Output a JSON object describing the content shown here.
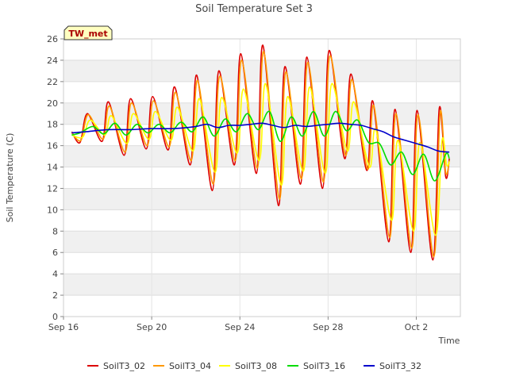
{
  "chart_data": {
    "type": "line",
    "title": "Soil Temperature Set 3",
    "xlabel": "Time",
    "ylabel": "Soil Temperature (C)",
    "site_badge": "TW_met",
    "xlim": [
      "2024-09-16",
      "2024-10-04"
    ],
    "ylim": [
      0,
      26
    ],
    "x_ticks": [
      {
        "date": "2024-09-16",
        "label": "Sep 16"
      },
      {
        "date": "2024-09-20",
        "label": "Sep 20"
      },
      {
        "date": "2024-09-24",
        "label": "Sep 24"
      },
      {
        "date": "2024-09-28",
        "label": "Sep 28"
      },
      {
        "date": "2024-10-02",
        "label": "Oct 2"
      }
    ],
    "y_ticks": [
      0,
      2,
      4,
      6,
      8,
      10,
      12,
      14,
      16,
      18,
      20,
      22,
      24,
      26
    ],
    "grid": "horizontal bands",
    "legend_position": "bottom",
    "series": [
      {
        "name": "SoilT3_02",
        "color": "#dd0000",
        "points": [
          [
            "2024-09-16 09:00",
            17.3
          ],
          [
            "2024-09-16 18:00",
            16.3
          ],
          [
            "2024-09-17 02:00",
            19.0
          ],
          [
            "2024-09-17 18:00",
            16.4
          ],
          [
            "2024-09-18 01:00",
            20.1
          ],
          [
            "2024-09-18 18:00",
            15.1
          ],
          [
            "2024-09-19 01:00",
            20.4
          ],
          [
            "2024-09-19 18:00",
            15.7
          ],
          [
            "2024-09-20 01:00",
            20.6
          ],
          [
            "2024-09-20 18:00",
            15.6
          ],
          [
            "2024-09-21 01:00",
            21.5
          ],
          [
            "2024-09-21 18:00",
            14.2
          ],
          [
            "2024-09-22 01:00",
            22.6
          ],
          [
            "2024-09-22 18:00",
            11.8
          ],
          [
            "2024-09-23 01:00",
            23.0
          ],
          [
            "2024-09-23 18:00",
            14.2
          ],
          [
            "2024-09-24 01:00",
            24.6
          ],
          [
            "2024-09-24 18:00",
            13.4
          ],
          [
            "2024-09-25 01:00",
            25.4
          ],
          [
            "2024-09-25 18:00",
            10.4
          ],
          [
            "2024-09-26 01:00",
            23.4
          ],
          [
            "2024-09-26 18:00",
            12.4
          ],
          [
            "2024-09-27 01:00",
            24.3
          ],
          [
            "2024-09-27 18:00",
            12.0
          ],
          [
            "2024-09-28 01:00",
            24.9
          ],
          [
            "2024-09-28 18:00",
            14.8
          ],
          [
            "2024-09-29 01:00",
            22.7
          ],
          [
            "2024-09-29 18:00",
            13.7
          ],
          [
            "2024-09-30 01:00",
            20.1
          ],
          [
            "2024-09-30 18:00",
            7.0
          ],
          [
            "2024-10-01 01:00",
            19.4
          ],
          [
            "2024-10-01 18:00",
            6.0
          ],
          [
            "2024-10-02 01:00",
            19.3
          ],
          [
            "2024-10-02 18:00",
            5.3
          ],
          [
            "2024-10-03 01:00",
            19.5
          ],
          [
            "2024-10-03 08:00",
            13.1
          ],
          [
            "2024-10-03 12:00",
            14.8
          ]
        ]
      },
      {
        "name": "SoilT3_04",
        "color": "#ff9900",
        "points": [
          [
            "2024-09-16 09:00",
            17.2
          ],
          [
            "2024-09-16 19:00",
            16.5
          ],
          [
            "2024-09-17 03:00",
            18.9
          ],
          [
            "2024-09-17 19:00",
            16.6
          ],
          [
            "2024-09-18 02:00",
            19.7
          ],
          [
            "2024-09-18 19:00",
            15.4
          ],
          [
            "2024-09-19 02:00",
            20.0
          ],
          [
            "2024-09-19 19:00",
            16.0
          ],
          [
            "2024-09-20 02:00",
            20.2
          ],
          [
            "2024-09-20 19:00",
            15.9
          ],
          [
            "2024-09-21 02:00",
            21.0
          ],
          [
            "2024-09-21 19:00",
            14.6
          ],
          [
            "2024-09-22 02:00",
            22.1
          ],
          [
            "2024-09-22 19:00",
            12.4
          ],
          [
            "2024-09-23 02:00",
            22.5
          ],
          [
            "2024-09-23 19:00",
            14.6
          ],
          [
            "2024-09-24 02:00",
            24.0
          ],
          [
            "2024-09-24 19:00",
            13.9
          ],
          [
            "2024-09-25 02:00",
            24.8
          ],
          [
            "2024-09-25 19:00",
            11.0
          ],
          [
            "2024-09-26 02:00",
            22.9
          ],
          [
            "2024-09-26 19:00",
            12.9
          ],
          [
            "2024-09-27 02:00",
            23.8
          ],
          [
            "2024-09-27 19:00",
            12.6
          ],
          [
            "2024-09-28 02:00",
            24.4
          ],
          [
            "2024-09-28 19:00",
            15.1
          ],
          [
            "2024-09-29 02:00",
            22.2
          ],
          [
            "2024-09-29 19:00",
            13.8
          ],
          [
            "2024-09-30 02:00",
            19.7
          ],
          [
            "2024-09-30 19:00",
            7.4
          ],
          [
            "2024-10-01 02:00",
            19.0
          ],
          [
            "2024-10-01 19:00",
            6.4
          ],
          [
            "2024-10-02 02:00",
            18.9
          ],
          [
            "2024-10-02 19:00",
            5.6
          ],
          [
            "2024-10-03 02:00",
            19.1
          ],
          [
            "2024-10-03 08:00",
            13.5
          ],
          [
            "2024-10-03 12:00",
            14.6
          ]
        ]
      },
      {
        "name": "SoilT3_08",
        "color": "#ffff00",
        "points": [
          [
            "2024-09-16 09:00",
            17.0
          ],
          [
            "2024-09-16 21:00",
            16.8
          ],
          [
            "2024-09-17 05:00",
            18.4
          ],
          [
            "2024-09-17 21:00",
            17.0
          ],
          [
            "2024-09-18 04:00",
            18.8
          ],
          [
            "2024-09-18 21:00",
            16.2
          ],
          [
            "2024-09-19 04:00",
            19.0
          ],
          [
            "2024-09-19 21:00",
            16.6
          ],
          [
            "2024-09-20 04:00",
            19.2
          ],
          [
            "2024-09-20 21:00",
            16.5
          ],
          [
            "2024-09-21 04:00",
            19.6
          ],
          [
            "2024-09-21 21:00",
            15.5
          ],
          [
            "2024-09-22 04:00",
            20.4
          ],
          [
            "2024-09-22 21:00",
            13.5
          ],
          [
            "2024-09-23 04:00",
            20.5
          ],
          [
            "2024-09-23 21:00",
            15.3
          ],
          [
            "2024-09-24 04:00",
            21.3
          ],
          [
            "2024-09-24 21:00",
            14.6
          ],
          [
            "2024-09-25 04:00",
            21.8
          ],
          [
            "2024-09-25 21:00",
            12.3
          ],
          [
            "2024-09-26 04:00",
            20.6
          ],
          [
            "2024-09-26 21:00",
            13.6
          ],
          [
            "2024-09-27 04:00",
            21.5
          ],
          [
            "2024-09-27 21:00",
            13.4
          ],
          [
            "2024-09-28 04:00",
            21.8
          ],
          [
            "2024-09-28 21:00",
            15.5
          ],
          [
            "2024-09-29 04:00",
            20.1
          ],
          [
            "2024-09-29 21:00",
            14.0
          ],
          [
            "2024-09-30 04:00",
            17.5
          ],
          [
            "2024-09-30 21:00",
            9.0
          ],
          [
            "2024-10-01 04:00",
            16.5
          ],
          [
            "2024-10-01 21:00",
            8.0
          ],
          [
            "2024-10-02 04:00",
            16.3
          ],
          [
            "2024-10-02 21:00",
            7.6
          ],
          [
            "2024-10-03 04:00",
            16.5
          ],
          [
            "2024-10-03 09:00",
            14.2
          ],
          [
            "2024-10-03 12:00",
            14.5
          ]
        ]
      },
      {
        "name": "SoilT3_16",
        "color": "#00dd00",
        "points": [
          [
            "2024-09-16 09:00",
            17.0
          ],
          [
            "2024-09-16 18:00",
            17.2
          ],
          [
            "2024-09-17 08:00",
            17.8
          ],
          [
            "2024-09-17 20:00",
            17.1
          ],
          [
            "2024-09-18 08:00",
            18.1
          ],
          [
            "2024-09-18 20:00",
            17.0
          ],
          [
            "2024-09-19 08:00",
            18.0
          ],
          [
            "2024-09-19 20:00",
            17.2
          ],
          [
            "2024-09-20 08:00",
            18.0
          ],
          [
            "2024-09-20 20:00",
            17.2
          ],
          [
            "2024-09-21 08:00",
            18.2
          ],
          [
            "2024-09-21 20:00",
            17.3
          ],
          [
            "2024-09-22 08:00",
            18.7
          ],
          [
            "2024-09-22 20:00",
            16.9
          ],
          [
            "2024-09-23 08:00",
            18.5
          ],
          [
            "2024-09-23 20:00",
            17.3
          ],
          [
            "2024-09-24 08:00",
            19.0
          ],
          [
            "2024-09-24 20:00",
            17.5
          ],
          [
            "2024-09-25 08:00",
            19.2
          ],
          [
            "2024-09-25 20:00",
            16.4
          ],
          [
            "2024-09-26 08:00",
            18.7
          ],
          [
            "2024-09-26 20:00",
            16.9
          ],
          [
            "2024-09-27 08:00",
            19.2
          ],
          [
            "2024-09-27 20:00",
            16.9
          ],
          [
            "2024-09-28 08:00",
            19.2
          ],
          [
            "2024-09-28 20:00",
            17.4
          ],
          [
            "2024-09-29 08:00",
            18.4
          ],
          [
            "2024-09-29 20:00",
            16.3
          ],
          [
            "2024-09-30 08:00",
            16.2
          ],
          [
            "2024-09-30 20:00",
            14.2
          ],
          [
            "2024-10-01 08:00",
            15.4
          ],
          [
            "2024-10-01 20:00",
            13.3
          ],
          [
            "2024-10-02 08:00",
            15.2
          ],
          [
            "2024-10-02 20:00",
            12.7
          ],
          [
            "2024-10-03 08:00",
            15.2
          ],
          [
            "2024-10-03 12:00",
            14.8
          ]
        ]
      },
      {
        "name": "SoilT3_32",
        "color": "#0000cc",
        "points": [
          [
            "2024-09-16 09:00",
            17.2
          ],
          [
            "2024-09-17 00:00",
            17.3
          ],
          [
            "2024-09-18 00:00",
            17.5
          ],
          [
            "2024-09-19 00:00",
            17.5
          ],
          [
            "2024-09-20 00:00",
            17.6
          ],
          [
            "2024-09-21 00:00",
            17.6
          ],
          [
            "2024-09-22 00:00",
            17.8
          ],
          [
            "2024-09-22 12:00",
            18.0
          ],
          [
            "2024-09-23 00:00",
            17.7
          ],
          [
            "2024-09-23 12:00",
            17.9
          ],
          [
            "2024-09-24 00:00",
            17.9
          ],
          [
            "2024-09-24 12:00",
            18.0
          ],
          [
            "2024-09-25 00:00",
            18.1
          ],
          [
            "2024-09-25 12:00",
            17.9
          ],
          [
            "2024-09-26 00:00",
            17.7
          ],
          [
            "2024-09-26 12:00",
            17.9
          ],
          [
            "2024-09-27 00:00",
            17.8
          ],
          [
            "2024-09-27 12:00",
            17.9
          ],
          [
            "2024-09-28 00:00",
            18.0
          ],
          [
            "2024-09-28 12:00",
            18.1
          ],
          [
            "2024-09-29 00:00",
            18.0
          ],
          [
            "2024-09-29 12:00",
            17.9
          ],
          [
            "2024-09-30 00:00",
            17.6
          ],
          [
            "2024-09-30 12:00",
            17.3
          ],
          [
            "2024-10-01 00:00",
            16.8
          ],
          [
            "2024-10-01 12:00",
            16.5
          ],
          [
            "2024-10-02 00:00",
            16.2
          ],
          [
            "2024-10-02 12:00",
            15.9
          ],
          [
            "2024-10-03 00:00",
            15.5
          ],
          [
            "2024-10-03 12:00",
            15.4
          ]
        ]
      }
    ]
  }
}
